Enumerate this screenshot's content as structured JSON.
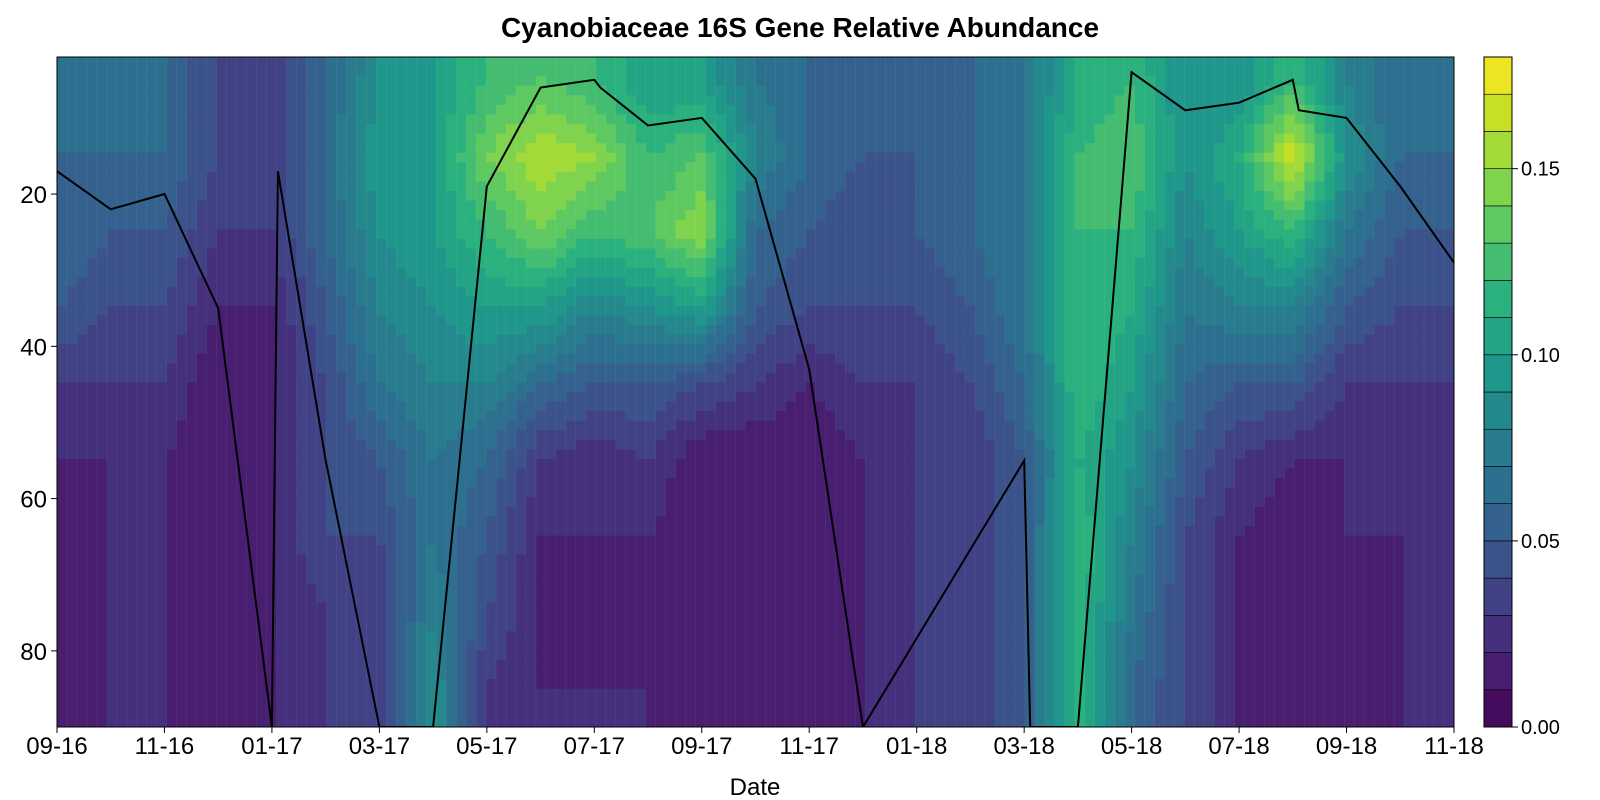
{
  "chart_data": {
    "type": "heatmap",
    "title": "Cyanobiaceae 16S Gene Relative Abundance",
    "xlabel": "Date",
    "ylabel": "",
    "x_tick_labels": [
      "09-16",
      "11-16",
      "01-17",
      "03-17",
      "05-17",
      "07-17",
      "09-17",
      "11-17",
      "01-18",
      "03-18",
      "05-18",
      "07-18",
      "09-18",
      "11-18"
    ],
    "y_ticks": [
      20,
      40,
      60,
      80
    ],
    "y_range": [
      2,
      90
    ],
    "y_reversed": true,
    "colorbar": {
      "ticks": [
        0.0,
        0.05,
        0.1,
        0.15
      ],
      "tick_labels": [
        "0.00",
        "0.05",
        "0.10",
        "0.15"
      ],
      "range": [
        0.0,
        0.18
      ],
      "levels": 18,
      "colors": [
        "#440154",
        "#482173",
        "#433e85",
        "#38598c",
        "#2d708e",
        "#25858e",
        "#1e9b8a",
        "#2ab07f",
        "#52c569",
        "#86d549",
        "#c2df23",
        "#fde725"
      ]
    },
    "line_series": {
      "x": [
        "09-16",
        "10-16",
        "11-16",
        "12-16",
        "01-17",
        "01-17",
        "02-17",
        "03-17",
        "04-17",
        "05-17",
        "06-17",
        "07-17",
        "07-17",
        "08-17",
        "09-17",
        "10-17",
        "11-17",
        "12-17",
        "03-18",
        "03-18",
        "04-18",
        "05-18",
        "06-18",
        "07-18",
        "08-18",
        "08-18",
        "09-18",
        "10-18",
        "11-18"
      ],
      "y": [
        17,
        22,
        20,
        35,
        90,
        17,
        55,
        90,
        90,
        19,
        6,
        5,
        6,
        11,
        10,
        18,
        43,
        90,
        55,
        90,
        90,
        4,
        9,
        8,
        5,
        9,
        10,
        19,
        29
      ]
    },
    "columns": [
      {
        "x": "09-16",
        "values": [
          0.06,
          0.06,
          0.06,
          0.05,
          0.03,
          0.02,
          0.01,
          0.01,
          0.01
        ]
      },
      {
        "x": "10-16",
        "values": [
          0.06,
          0.06,
          0.05,
          0.04,
          0.03,
          0.02,
          0.02,
          0.02,
          0.02
        ]
      },
      {
        "x": "11-16",
        "values": [
          0.06,
          0.06,
          0.05,
          0.04,
          0.03,
          0.02,
          0.02,
          0.02,
          0.02
        ]
      },
      {
        "x": "12-16",
        "values": [
          0.04,
          0.04,
          0.03,
          0.02,
          0.01,
          0.01,
          0.01,
          0.01,
          0.01
        ]
      },
      {
        "x": "01-17",
        "values": [
          0.03,
          0.03,
          0.03,
          0.02,
          0.02,
          0.02,
          0.02,
          0.02,
          0.02
        ]
      },
      {
        "x": "02-17",
        "values": [
          0.06,
          0.06,
          0.06,
          0.05,
          0.04,
          0.04,
          0.04,
          0.03,
          0.03
        ]
      },
      {
        "x": "03-17",
        "values": [
          0.09,
          0.1,
          0.09,
          0.08,
          0.07,
          0.05,
          0.04,
          0.03,
          0.03
        ]
      },
      {
        "x": "04-17",
        "values": [
          0.1,
          0.1,
          0.1,
          0.09,
          0.08,
          0.07,
          0.07,
          0.08,
          0.09
        ]
      },
      {
        "x": "05-17",
        "values": [
          0.12,
          0.14,
          0.12,
          0.1,
          0.08,
          0.06,
          0.05,
          0.04,
          0.03
        ]
      },
      {
        "x": "06-17",
        "values": [
          0.13,
          0.16,
          0.14,
          0.1,
          0.06,
          0.03,
          0.02,
          0.02,
          0.02
        ]
      },
      {
        "x": "07-17",
        "values": [
          0.12,
          0.15,
          0.12,
          0.08,
          0.05,
          0.02,
          0.02,
          0.01,
          0.02
        ]
      },
      {
        "x": "08-17",
        "values": [
          0.1,
          0.12,
          0.13,
          0.09,
          0.05,
          0.03,
          0.02,
          0.02,
          0.02
        ]
      },
      {
        "x": "09-17",
        "values": [
          0.1,
          0.13,
          0.15,
          0.1,
          0.04,
          0.01,
          0.01,
          0.01,
          0.01
        ]
      },
      {
        "x": "10-17",
        "values": [
          0.07,
          0.08,
          0.06,
          0.05,
          0.03,
          0.01,
          0.01,
          0.01,
          0.01
        ]
      },
      {
        "x": "11-17",
        "values": [
          0.06,
          0.06,
          0.05,
          0.04,
          0.02,
          0.01,
          0.01,
          0.01,
          0.01
        ]
      },
      {
        "x": "12-17",
        "values": [
          0.05,
          0.05,
          0.04,
          0.04,
          0.03,
          0.02,
          0.02,
          0.02,
          0.02
        ]
      },
      {
        "x": "01-18",
        "values": [
          0.05,
          0.05,
          0.05,
          0.04,
          0.03,
          0.03,
          0.03,
          0.03,
          0.03
        ]
      },
      {
        "x": "02-18",
        "values": [
          0.06,
          0.06,
          0.06,
          0.05,
          0.04,
          0.03,
          0.03,
          0.03,
          0.03
        ]
      },
      {
        "x": "03-18",
        "values": [
          0.07,
          0.07,
          0.07,
          0.07,
          0.06,
          0.05,
          0.05,
          0.05,
          0.05
        ]
      },
      {
        "x": "04-18",
        "values": [
          0.11,
          0.12,
          0.12,
          0.12,
          0.12,
          0.11,
          0.12,
          0.12,
          0.12
        ]
      },
      {
        "x": "05-18",
        "values": [
          0.12,
          0.13,
          0.12,
          0.11,
          0.1,
          0.09,
          0.08,
          0.07,
          0.06
        ]
      },
      {
        "x": "06-18",
        "values": [
          0.09,
          0.09,
          0.08,
          0.07,
          0.06,
          0.05,
          0.04,
          0.04,
          0.04
        ]
      },
      {
        "x": "07-18",
        "values": [
          0.09,
          0.11,
          0.1,
          0.08,
          0.05,
          0.03,
          0.02,
          0.02,
          0.02
        ]
      },
      {
        "x": "08-18",
        "values": [
          0.12,
          0.17,
          0.12,
          0.08,
          0.05,
          0.02,
          0.01,
          0.01,
          0.01
        ]
      },
      {
        "x": "09-18",
        "values": [
          0.08,
          0.09,
          0.07,
          0.05,
          0.03,
          0.02,
          0.02,
          0.01,
          0.01
        ]
      },
      {
        "x": "10-18",
        "values": [
          0.06,
          0.06,
          0.05,
          0.04,
          0.03,
          0.02,
          0.02,
          0.02,
          0.02
        ]
      },
      {
        "x": "11-18",
        "values": [
          0.06,
          0.06,
          0.05,
          0.04,
          0.03,
          0.02,
          0.02,
          0.02,
          0.02
        ]
      }
    ],
    "column_depths": [
      5,
      15,
      25,
      35,
      45,
      55,
      65,
      75,
      85
    ],
    "grid": false
  }
}
